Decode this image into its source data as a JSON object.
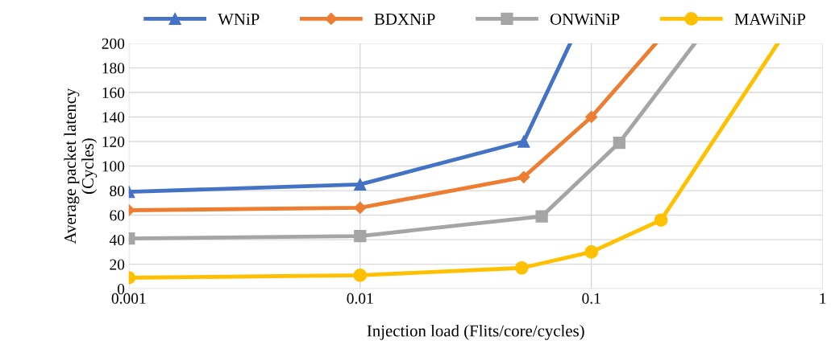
{
  "chart_data": {
    "type": "line",
    "xlabel": "Injection load (Flits/core/cycles)",
    "ylabel": "Average packet latency\n(Cycles)",
    "log": "x",
    "xlim": [
      0.001,
      1
    ],
    "xticks": [
      0.001,
      0.01,
      0.1,
      1
    ],
    "ylim": [
      0,
      200
    ],
    "yticks": [
      0,
      20,
      40,
      60,
      80,
      100,
      120,
      140,
      160,
      180,
      200
    ],
    "grid": true,
    "legend": "top",
    "line_style": "solid",
    "series": [
      {
        "name": "WNiP",
        "color": "#4472c4",
        "marker": "triangle",
        "x": [
          0.001,
          0.01,
          0.051,
          0.081
        ],
        "values": [
          79,
          85,
          120,
          200
        ]
      },
      {
        "name": "BDXNiP",
        "color": "#ed7d31",
        "marker": "diamond",
        "x": [
          0.001,
          0.01,
          0.051,
          0.1,
          0.19
        ],
        "values": [
          64,
          66,
          91,
          140,
          200
        ]
      },
      {
        "name": "ONWiNiP",
        "color": "#a5a5a5",
        "marker": "square",
        "x": [
          0.001,
          0.01,
          0.061,
          0.132,
          0.28
        ],
        "values": [
          41,
          43,
          59,
          119,
          200
        ]
      },
      {
        "name": "MAWiNiP",
        "color": "#ffc000",
        "marker": "circle",
        "x": [
          0.001,
          0.01,
          0.05,
          0.1,
          0.2,
          0.64
        ],
        "values": [
          9,
          11,
          17,
          30,
          56,
          200
        ]
      }
    ]
  }
}
